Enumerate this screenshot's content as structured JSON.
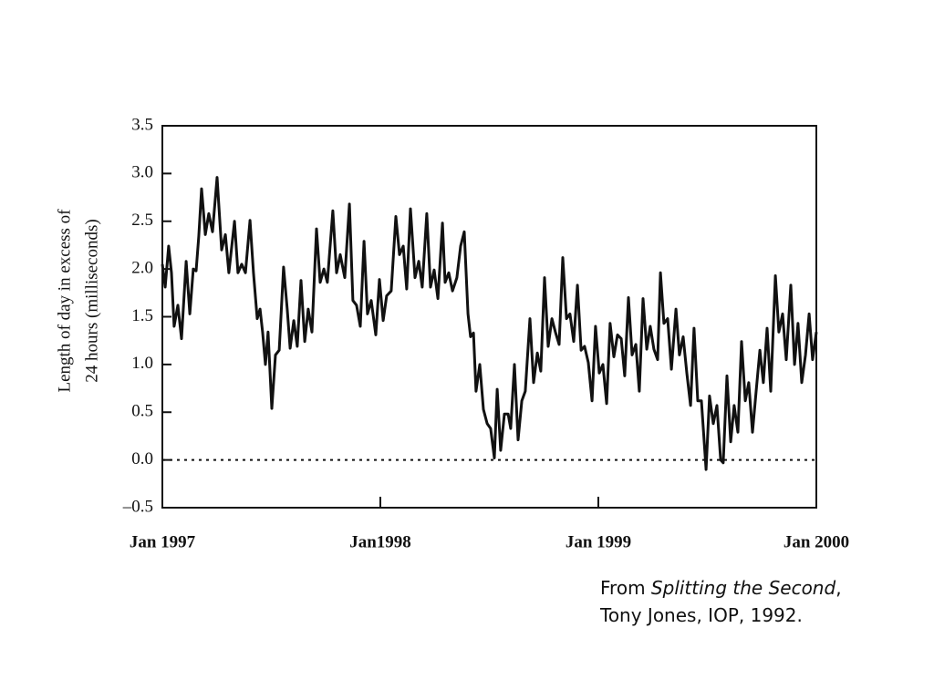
{
  "chart_data": {
    "type": "line",
    "y_label": [
      "Length of day in excess of",
      "24 hours (milliseconds)"
    ],
    "color": "#111111",
    "xlim": [
      1997,
      2000
    ],
    "xticks": [
      {
        "value": 1997,
        "label": "Jan 1997"
      },
      {
        "value": 1998,
        "label": "Jan1998"
      },
      {
        "value": 1999,
        "label": "Jan 1999"
      },
      {
        "value": 2000,
        "label": "Jan 2000"
      }
    ],
    "ylim": [
      -0.5,
      3.5
    ],
    "yticks": [
      {
        "value": -0.5,
        "label": "–0.5"
      },
      {
        "value": 0,
        "label": "0.0"
      },
      0.5,
      {
        "value": 1,
        "label": "1.0"
      },
      1.5,
      {
        "value": 2,
        "label": "2.0"
      },
      2.5,
      {
        "value": 3,
        "label": "3.0"
      },
      3.5
    ],
    "reference_line": 0,
    "x": [
      1997.0,
      1997.013,
      1997.029,
      1997.042,
      1997.054,
      1997.071,
      1997.088,
      1997.109,
      1997.126,
      1997.142,
      1997.155,
      1997.167,
      1997.18,
      1997.197,
      1997.213,
      1997.23,
      1997.251,
      1997.272,
      1997.289,
      1997.305,
      1997.331,
      1997.347,
      1997.364,
      1997.381,
      1997.402,
      1997.418,
      1997.435,
      1997.448,
      1997.46,
      1997.473,
      1997.485,
      1997.502,
      1997.519,
      1997.536,
      1997.556,
      1997.573,
      1997.586,
      1997.603,
      1997.619,
      1997.636,
      1997.653,
      1997.669,
      1997.686,
      1997.707,
      1997.724,
      1997.741,
      1997.757,
      1997.782,
      1997.799,
      1997.816,
      1997.837,
      1997.858,
      1997.874,
      1997.891,
      1997.908,
      1997.925,
      1997.941,
      1997.958,
      1997.979,
      1997.996,
      1998.013,
      1998.029,
      1998.05,
      1998.071,
      1998.088,
      1998.105,
      1998.121,
      1998.138,
      1998.159,
      1998.176,
      1998.192,
      1998.213,
      1998.23,
      1998.247,
      1998.264,
      1998.285,
      1998.297,
      1998.314,
      1998.331,
      1998.351,
      1998.368,
      1998.385,
      1998.402,
      1998.414,
      1998.427,
      1998.439,
      1998.456,
      1998.473,
      1998.49,
      1998.506,
      1998.523,
      1998.536,
      1998.552,
      1998.569,
      1998.586,
      1998.598,
      1998.615,
      1998.632,
      1998.649,
      1998.665,
      1998.686,
      1998.703,
      1998.72,
      1998.736,
      1998.753,
      1998.77,
      1998.787,
      1998.803,
      1998.82,
      1998.837,
      1998.854,
      1998.87,
      1998.887,
      1998.904,
      1998.921,
      1998.937,
      1998.954,
      1998.971,
      1998.987,
      1999.004,
      1999.021,
      1999.038,
      1999.054,
      1999.071,
      1999.088,
      1999.105,
      1999.121,
      1999.138,
      1999.155,
      1999.172,
      1999.188,
      1999.205,
      1999.222,
      1999.238,
      1999.255,
      1999.272,
      1999.285,
      1999.301,
      1999.318,
      1999.335,
      1999.356,
      1999.372,
      1999.389,
      1999.406,
      1999.423,
      1999.439,
      1999.456,
      1999.473,
      1999.494,
      1999.51,
      1999.527,
      1999.544,
      1999.561,
      1999.573,
      1999.59,
      1999.607,
      1999.623,
      1999.64,
      1999.657,
      1999.674,
      1999.69,
      1999.707,
      1999.724,
      1999.741,
      1999.757,
      1999.774,
      1999.791,
      1999.812,
      1999.828,
      1999.845,
      1999.862,
      1999.883,
      1999.9,
      1999.916,
      1999.933,
      1999.95,
      1999.967,
      1999.983,
      2000.0
    ],
    "values": [
      2.05,
      1.81,
      2.24,
      1.96,
      1.4,
      1.62,
      1.27,
      2.08,
      1.53,
      2.0,
      1.98,
      2.34,
      2.84,
      2.36,
      2.58,
      2.39,
      2.96,
      2.2,
      2.36,
      1.96,
      2.5,
      1.96,
      2.05,
      1.96,
      2.51,
      1.96,
      1.48,
      1.58,
      1.34,
      1.0,
      1.34,
      0.54,
      1.1,
      1.15,
      2.02,
      1.58,
      1.17,
      1.46,
      1.19,
      1.88,
      1.24,
      1.58,
      1.34,
      2.42,
      1.86,
      2.0,
      1.86,
      2.61,
      1.96,
      2.15,
      1.91,
      2.68,
      1.67,
      1.62,
      1.4,
      2.29,
      1.53,
      1.67,
      1.31,
      1.89,
      1.46,
      1.72,
      1.77,
      2.55,
      2.15,
      2.24,
      1.79,
      2.63,
      1.91,
      2.08,
      1.81,
      2.58,
      1.81,
      1.99,
      1.69,
      2.48,
      1.86,
      1.96,
      1.77,
      1.91,
      2.24,
      2.39,
      1.53,
      1.29,
      1.33,
      0.72,
      1.0,
      0.53,
      0.38,
      0.33,
      0.02,
      0.74,
      0.1,
      0.48,
      0.48,
      0.33,
      1.0,
      0.21,
      0.62,
      0.72,
      1.48,
      0.81,
      1.12,
      0.93,
      1.91,
      1.19,
      1.48,
      1.34,
      1.21,
      2.12,
      1.48,
      1.53,
      1.24,
      1.83,
      1.15,
      1.19,
      1.02,
      0.62,
      1.4,
      0.91,
      1.0,
      0.59,
      1.43,
      1.08,
      1.31,
      1.27,
      0.88,
      1.7,
      1.1,
      1.21,
      0.72,
      1.69,
      1.16,
      1.4,
      1.16,
      1.05,
      1.96,
      1.43,
      1.48,
      0.95,
      1.58,
      1.1,
      1.29,
      0.91,
      0.57,
      1.38,
      0.62,
      0.62,
      -0.1,
      0.67,
      0.38,
      0.57,
      0.0,
      -0.03,
      0.88,
      0.19,
      0.57,
      0.29,
      1.24,
      0.62,
      0.81,
      0.29,
      0.72,
      1.15,
      0.81,
      1.38,
      0.72,
      1.93,
      1.34,
      1.53,
      1.05,
      1.83,
      1.0,
      1.43,
      0.81,
      1.1,
      1.53,
      1.05,
      1.34
    ]
  },
  "annotation": [
    "From ",
    "Splitting the Second",
    ",",
    "Tony Jones, IOP, 1992."
  ]
}
